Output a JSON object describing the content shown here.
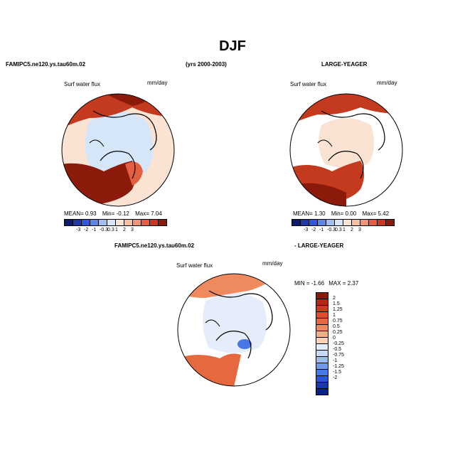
{
  "title": "DJF",
  "left_header": "FAMIPC5.ne120.ys.tau60m.02",
  "years": "(yrs 2000-2003)",
  "right_header": "LARGE-YEAGER",
  "diff_header_left": "FAMIPC5.ne120.ys.tau60m.02",
  "diff_header_right": "- LARGE-YEAGER",
  "chart_data": [
    {
      "type": "heatmap",
      "projection": "polar-stereographic (north)",
      "title": "Surf water flux",
      "units": "mm/day",
      "stats": {
        "mean_label": "MEAN=",
        "mean": "0.93",
        "min_label": "Min=",
        "min": "-0.12",
        "max_label": "Max=",
        "max": "7.04"
      },
      "colorbar_levels": [
        "-3",
        "-2",
        "-1",
        "-0.3",
        "0.3",
        "1",
        "2",
        "3"
      ],
      "colorbar_colors": [
        "#0a1a6e",
        "#1b3aa8",
        "#2f5ad6",
        "#5a86ea",
        "#9fbef4",
        "#d5e6f8",
        "#fbe3d3",
        "#f7c0a0",
        "#f09572",
        "#e2603f",
        "#c43a1f",
        "#8c1a0a"
      ]
    },
    {
      "type": "heatmap",
      "projection": "polar-stereographic (north)",
      "title": "Surf water flux",
      "units": "mm/day",
      "stats": {
        "mean_label": "MEAN=",
        "mean": "1.30",
        "min_label": "Min=",
        "min": "0.00",
        "max_label": "Max=",
        "max": "5.42"
      },
      "colorbar_levels": [
        "-3",
        "-2",
        "-1",
        "-0.3",
        "0.3",
        "1",
        "2",
        "3"
      ],
      "colorbar_colors": [
        "#0a1a6e",
        "#1b3aa8",
        "#2f5ad6",
        "#5a86ea",
        "#9fbef4",
        "#d5e6f8",
        "#fbe3d3",
        "#f7c0a0",
        "#f09572",
        "#e2603f",
        "#c43a1f",
        "#8c1a0a"
      ]
    },
    {
      "type": "heatmap",
      "projection": "polar-stereographic (north)",
      "title": "Surf water flux",
      "units": "mm/day",
      "stats": {
        "min_label": "MIN =",
        "min": "-1.66",
        "max_label": "MAX =",
        "max": "2.37"
      },
      "colorbar_levels": [
        "2",
        "1.5",
        "1.25",
        "1",
        "0.75",
        "0.5",
        "0.25",
        "0",
        "-0.25",
        "-0.5",
        "-0.75",
        "-1",
        "-1.25",
        "-1.5",
        "-2"
      ],
      "colorbar_colors": [
        "#8c1a0a",
        "#b32a12",
        "#cc3b1c",
        "#dc4f2a",
        "#e6683e",
        "#ef8a5f",
        "#f5ae88",
        "#f9d2b8",
        "#e4edf9",
        "#c6d9f6",
        "#9cbcf2",
        "#6f98ee",
        "#4877e6",
        "#2a55d6",
        "#1536b5",
        "#0a1f8a"
      ]
    }
  ]
}
